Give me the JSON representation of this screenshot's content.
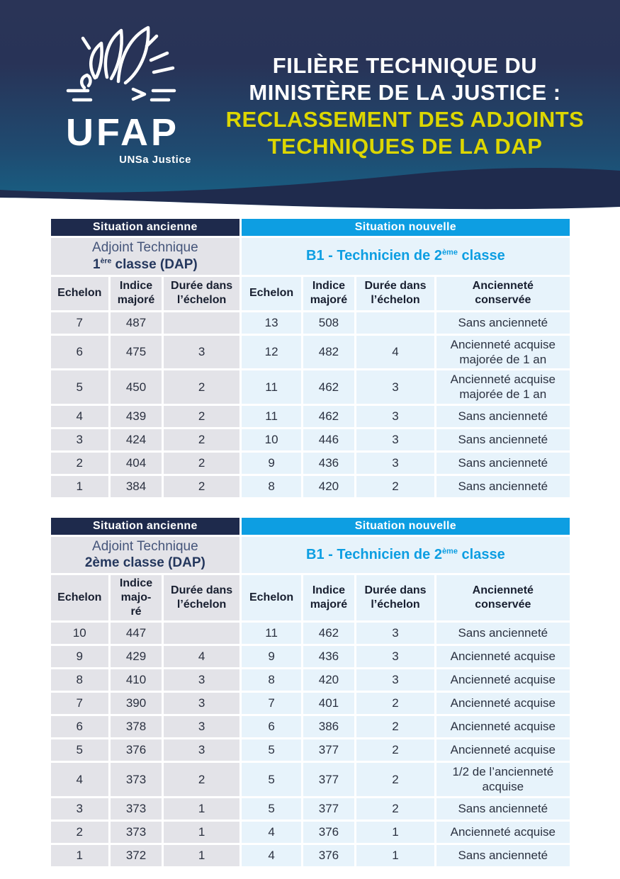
{
  "colors": {
    "navy_bar": "#1e2a4c",
    "blue_bar": "#0d9ee2",
    "yellow_title": "#dcd600",
    "left_cell_bg": "#e3e3e8",
    "right_cell_bg": "#e7f3fb",
    "hero_top": "#2a3457",
    "hero_bottom": "#1a6186",
    "wave_navy": "#1f2b4d"
  },
  "header": {
    "logo_name": "UFAP",
    "logo_subtitle": "UNSa Justice",
    "bird_icon": "dove-flame-with-rays",
    "title_line1": "FILIÈRE TECHNIQUE DU",
    "title_line2": "MINISTÈRE DE LA JUSTICE :",
    "title_line3": "RECLASSEMENT DES ADJOINTS",
    "title_line4": "TECHNIQUES DE LA DAP"
  },
  "tables": [
    {
      "bar_old": "Situation ancienne",
      "bar_new": "Situation nouvelle",
      "old_title_line1": "Adjoint Technique",
      "old_title_line2_pre": "1",
      "old_title_line2_sup": "ère",
      "old_title_line2_post": " classe (DAP)",
      "new_title_pre": "B1 - Technicien de 2",
      "new_title_sup": "ème",
      "new_title_post": " classe",
      "columns": [
        "Echelon",
        "Indice\nmajoré",
        "Durée dans\nl’échelon",
        "Echelon",
        "Indice\nmajoré",
        "Durée dans\nl’échelon",
        "Ancienneté\nconservée"
      ],
      "rows": [
        [
          "7",
          "487",
          "",
          "13",
          "508",
          "",
          "Sans ancienneté"
        ],
        [
          "6",
          "475",
          "3",
          "12",
          "482",
          "4",
          "Ancienneté acquise majorée de 1 an"
        ],
        [
          "5",
          "450",
          "2",
          "11",
          "462",
          "3",
          "Ancienneté acquise majorée de 1 an"
        ],
        [
          "4",
          "439",
          "2",
          "11",
          "462",
          "3",
          "Sans ancienneté"
        ],
        [
          "3",
          "424",
          "2",
          "10",
          "446",
          "3",
          "Sans ancienneté"
        ],
        [
          "2",
          "404",
          "2",
          "9",
          "436",
          "3",
          "Sans ancienneté"
        ],
        [
          "1",
          "384",
          "2",
          "8",
          "420",
          "2",
          "Sans ancienneté"
        ]
      ]
    },
    {
      "bar_old": "Situation ancienne",
      "bar_new": "Situation nouvelle",
      "old_title_line1": "Adjoint Technique",
      "old_title_line2_pre": "2ème classe (DAP)",
      "old_title_line2_sup": "",
      "old_title_line2_post": "",
      "new_title_pre": "B1 - Technicien de 2",
      "new_title_sup": "ème",
      "new_title_post": " classe",
      "columns": [
        "Echelon",
        "Indice\nmajo-\nré",
        "Durée dans\nl’échelon",
        "Echelon",
        "Indice\nmajoré",
        "Durée dans\nl’échelon",
        "Ancienneté\nconservée"
      ],
      "rows": [
        [
          "10",
          "447",
          "",
          "11",
          "462",
          "3",
          "Sans ancienneté"
        ],
        [
          "9",
          "429",
          "4",
          "9",
          "436",
          "3",
          "Ancienneté acquise"
        ],
        [
          "8",
          "410",
          "3",
          "8",
          "420",
          "3",
          "Ancienneté acquise"
        ],
        [
          "7",
          "390",
          "3",
          "7",
          "401",
          "2",
          "Ancienneté acquise"
        ],
        [
          "6",
          "378",
          "3",
          "6",
          "386",
          "2",
          "Ancienneté acquise"
        ],
        [
          "5",
          "376",
          "3",
          "5",
          "377",
          "2",
          "Ancienneté acquise"
        ],
        [
          "4",
          "373",
          "2",
          "5",
          "377",
          "2",
          "1/2 de l’ancienneté acquise"
        ],
        [
          "3",
          "373",
          "1",
          "5",
          "377",
          "2",
          "Sans ancienneté"
        ],
        [
          "2",
          "373",
          "1",
          "4",
          "376",
          "1",
          "Ancienneté acquise"
        ],
        [
          "1",
          "372",
          "1",
          "4",
          "376",
          "1",
          "Sans ancienneté"
        ]
      ]
    }
  ]
}
